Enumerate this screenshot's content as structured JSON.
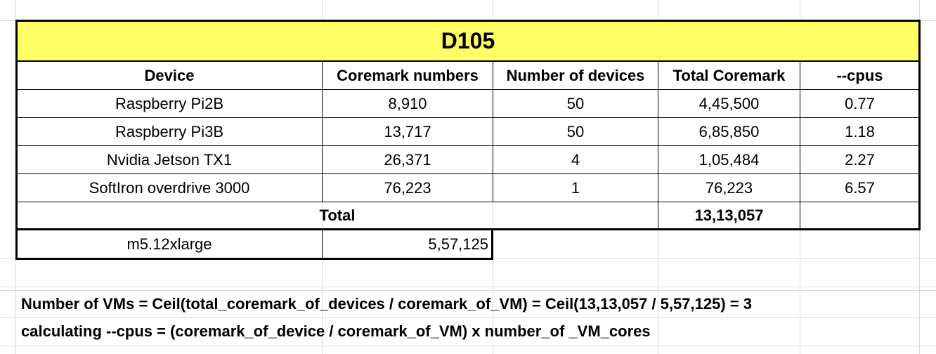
{
  "sheet": {
    "title": "D105",
    "title_fill": "#ffff66",
    "headers": [
      "Device",
      "Coremark numbers",
      "Number of devices",
      "Total Coremark",
      "--cpus"
    ],
    "rows": [
      [
        "Raspberry Pi2B",
        "8,910",
        "50",
        "4,45,500",
        "0.77"
      ],
      [
        "Raspberry Pi3B",
        "13,717",
        "50",
        "6,85,850",
        "1.18"
      ],
      [
        "Nvidia Jetson TX1",
        "26,371",
        "4",
        "1,05,484",
        "2.27"
      ],
      [
        "SoftIron overdrive 3000",
        "76,223",
        "1",
        "76,223",
        "6.57"
      ]
    ],
    "total_label": "Total",
    "total_value": "13,13,057",
    "vm": {
      "name": "m5.12xlarge",
      "coremark": "5,57,125"
    },
    "note1": "Number of VMs = Ceil(total_coremark_of_devices / coremark_of_VM) = Ceil(13,13,057 / 5,57,125) = 3",
    "note2": "calculating --cpus = (coremark_of_device / coremark_of_VM) x number_of _VM_cores"
  }
}
